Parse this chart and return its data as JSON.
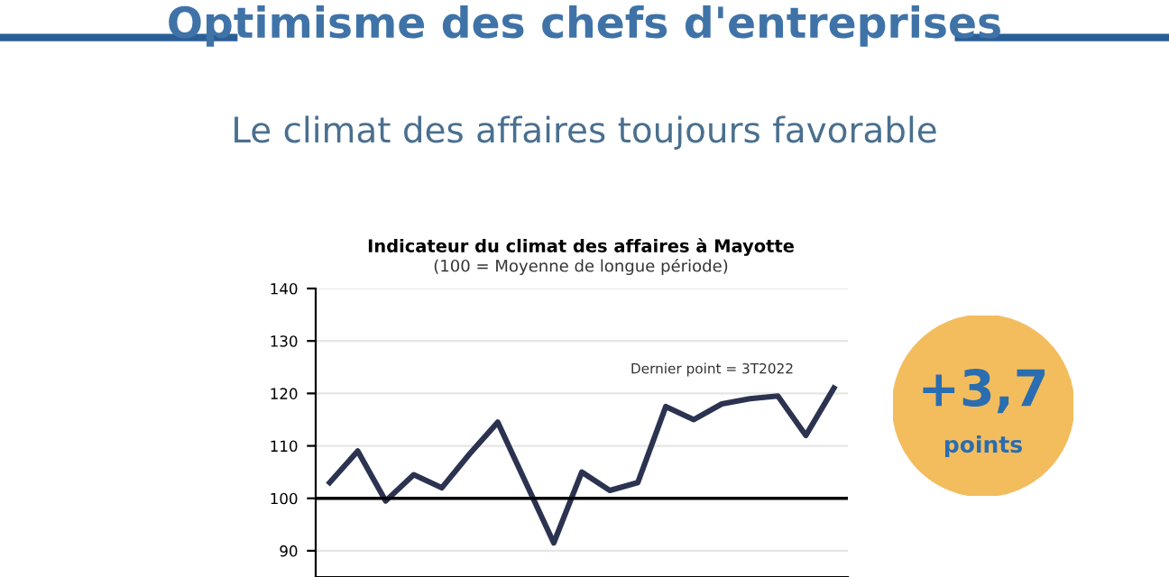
{
  "chart_data": {
    "type": "line",
    "title": "Optimisme des chefs d'entreprises",
    "subtitle": "Le climat des affaires toujours favorable",
    "annotations": [
      "Indicateur du climat des affaires à Mayotte",
      "(100 = Moyenne de longue période)",
      "Dernier point = 3T2022",
      "+3,7",
      "points"
    ],
    "categories": [
      null,
      null,
      null,
      null,
      null,
      null,
      null,
      null,
      null,
      null,
      null,
      null,
      null,
      null,
      null,
      null,
      null,
      null,
      null
    ],
    "series": [
      {
        "color": "#2b3350",
        "values": [
          103,
          109,
          99.5,
          104.5,
          102,
          108.5,
          114.5,
          103,
          91.5,
          105,
          101.5,
          103,
          117.5,
          115,
          118,
          119,
          119.5,
          112,
          121
        ]
      }
    ],
    "ylim": [
      85,
      140
    ],
    "yticks": [
      90,
      100,
      110,
      120,
      130,
      140
    ],
    "grid": "y",
    "ref_lines": [
      {
        "axis": "y",
        "value": 100,
        "color": "#000000"
      }
    ],
    "marker": "none",
    "line_style": "solid"
  }
}
